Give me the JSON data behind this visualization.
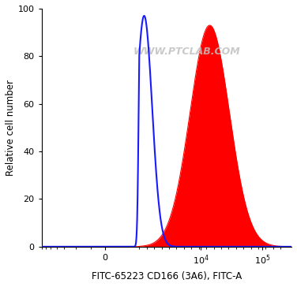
{
  "xlabel": "FITC-65223 CD166 (3A6), FITC-A",
  "ylabel": "Relative cell number",
  "ylim": [
    0,
    100
  ],
  "yticks": [
    0,
    20,
    40,
    60,
    80,
    100
  ],
  "watermark": "WWW.PTCLAB.COM",
  "bg_color": "#ffffff",
  "blue_color": "#1a1aff",
  "red_color": "#ff0000",
  "blue_peak_x": 1200,
  "blue_sigma_log": 0.13,
  "blue_peak_height": 97,
  "red_peak_x": 14000,
  "red_sigma_log": 0.32,
  "red_peak_height": 93,
  "linthresh": 1000,
  "xmin": -3000,
  "xmax": 300000,
  "xtick_labels": [
    "0",
    "10^4",
    "10^5"
  ],
  "xtick_positions": [
    0,
    10000,
    100000
  ]
}
